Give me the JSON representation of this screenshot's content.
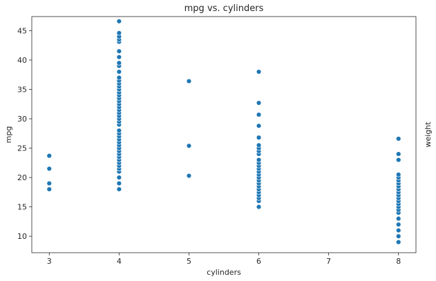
{
  "chart_data": {
    "type": "scatter",
    "title": "mpg vs. cylinders",
    "xlabel": "cylinders",
    "ylabel": "mpg",
    "right_axis_label": "weight",
    "xlim": [
      2.75,
      8.25
    ],
    "ylim": [
      7.2,
      47.4
    ],
    "xticks": [
      3,
      4,
      5,
      6,
      7,
      8
    ],
    "yticks": [
      10,
      15,
      20,
      25,
      30,
      35,
      40,
      45
    ],
    "grid": false,
    "point_color": "#1f77b4",
    "series": [
      {
        "x": 3,
        "y": [
          18.0,
          19.0,
          21.5,
          23.7
        ]
      },
      {
        "x": 4,
        "y": [
          18.0,
          19.0,
          20.0,
          21.0,
          21.5,
          22.0,
          22.5,
          23.0,
          23.5,
          24.0,
          24.5,
          25.0,
          25.5,
          26.0,
          26.5,
          27.0,
          27.5,
          28.0,
          29.0,
          29.5,
          30.0,
          30.5,
          31.0,
          31.5,
          32.0,
          32.5,
          33.0,
          33.5,
          34.0,
          34.5,
          35.0,
          35.5,
          36.0,
          36.5,
          37.0,
          38.0,
          39.0,
          39.5,
          40.5,
          41.5,
          43.1,
          43.5,
          44.0,
          44.6,
          46.6
        ]
      },
      {
        "x": 5,
        "y": [
          20.3,
          25.4,
          36.4
        ]
      },
      {
        "x": 6,
        "y": [
          15.0,
          16.0,
          16.5,
          17.0,
          17.5,
          18.0,
          18.5,
          19.0,
          19.5,
          20.0,
          20.5,
          21.0,
          21.5,
          22.0,
          22.5,
          23.0,
          24.0,
          24.5,
          25.0,
          25.5,
          26.8,
          28.8,
          30.7,
          32.7,
          38.0
        ]
      },
      {
        "x": 8,
        "y": [
          9.0,
          10.0,
          11.0,
          12.0,
          13.0,
          14.0,
          14.5,
          15.0,
          15.5,
          16.0,
          16.5,
          17.0,
          17.5,
          18.0,
          18.5,
          19.0,
          19.5,
          20.0,
          20.5,
          23.0,
          24.0,
          26.6
        ]
      }
    ]
  }
}
